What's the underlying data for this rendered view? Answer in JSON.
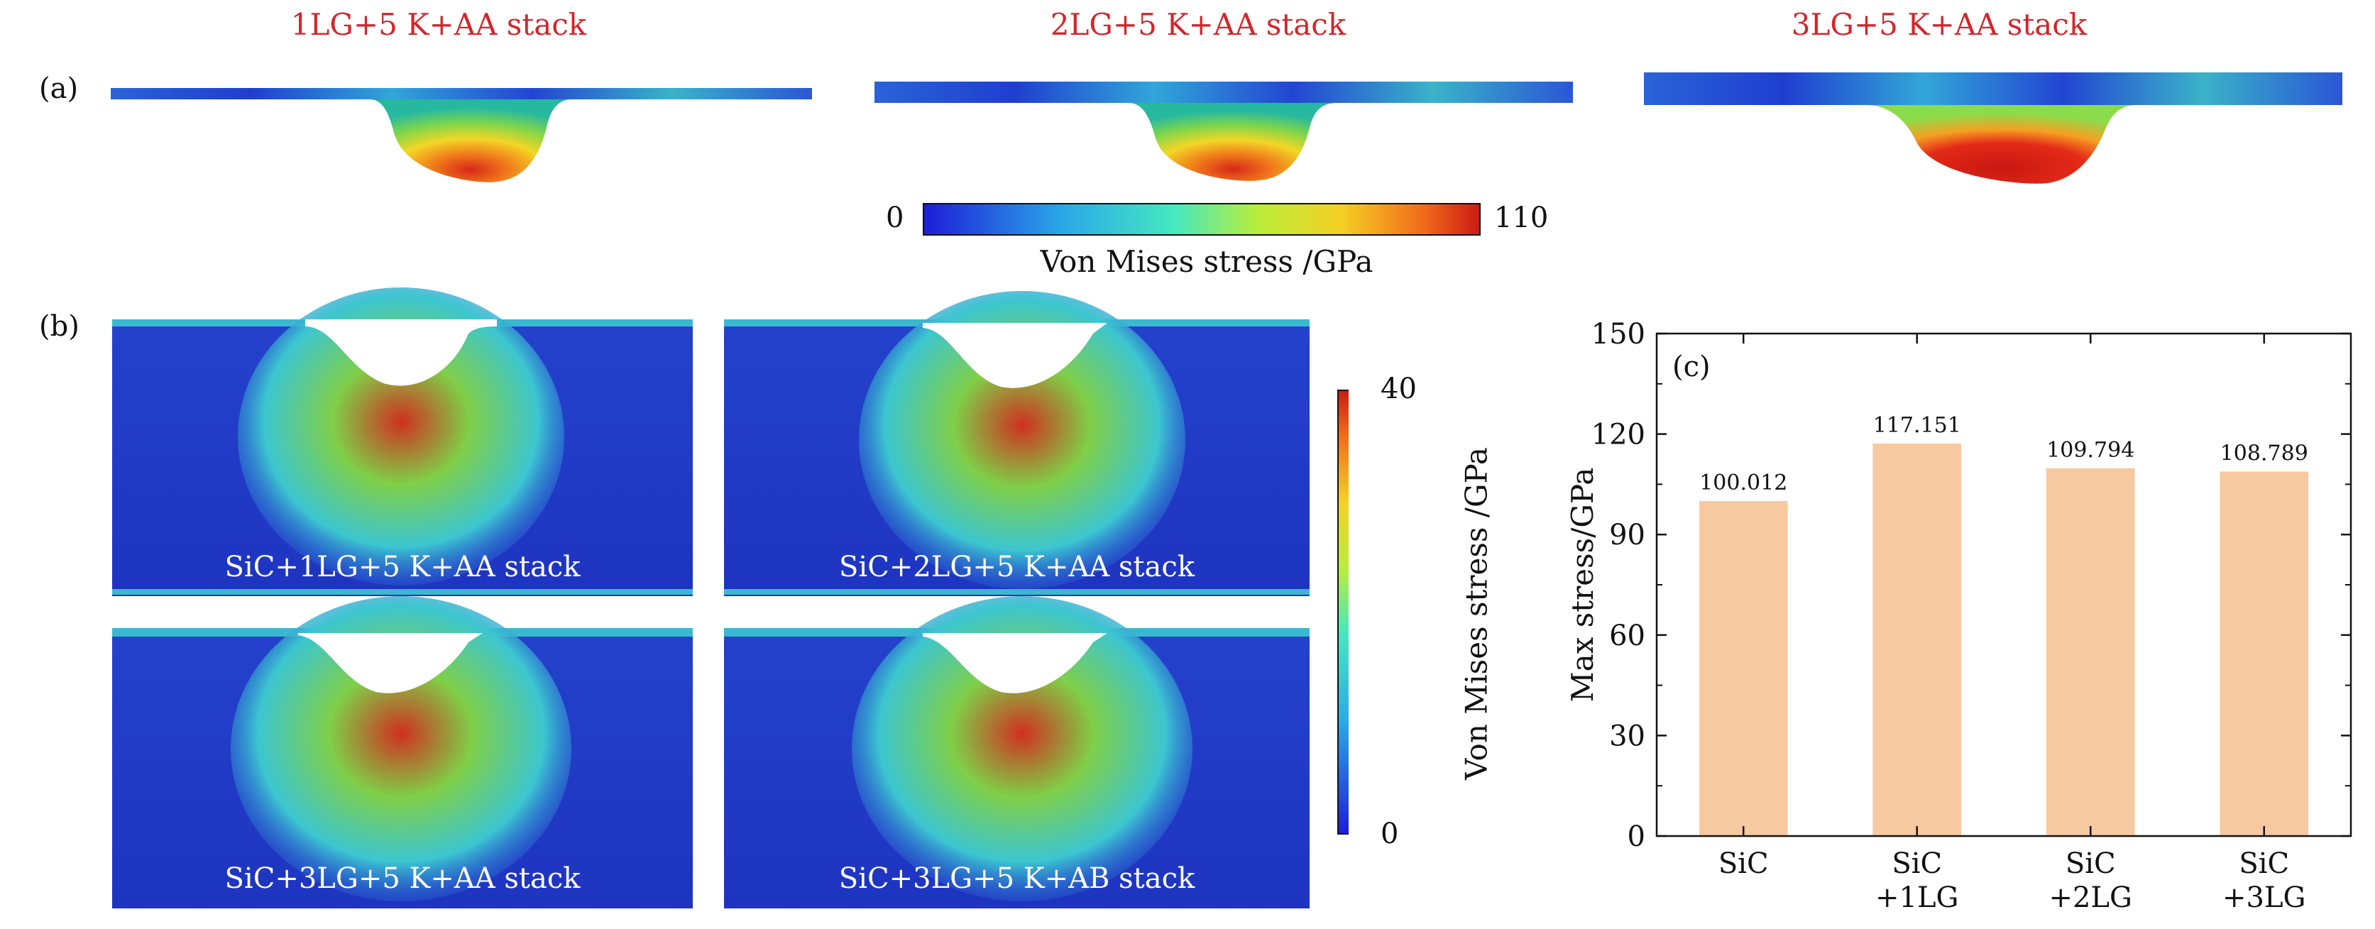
{
  "panel_a": {
    "label": "(a)",
    "titles": [
      "1LG+5 K+AA stack",
      "2LG+5 K+AA stack",
      "3LG+5 K+AA stack"
    ],
    "colorbar": {
      "min": "0",
      "max": "110",
      "label": "Von Mises stress /GPa"
    }
  },
  "panel_b": {
    "label": "(b)",
    "images": [
      "SiC+1LG+5 K+AA stack",
      "SiC+2LG+5 K+AA stack",
      "SiC+3LG+5 K+AA stack",
      "SiC+3LG+5 K+AB stack"
    ],
    "colorbar": {
      "min": "0",
      "max": "40",
      "label": "Von Mises stress /GPa"
    }
  },
  "colors": {
    "title_red": "#d4252a",
    "bar_fill": "#f7c9a0",
    "stress_low": "#1d2bd8",
    "stress_high": "#d62818"
  },
  "chart_data": {
    "type": "bar",
    "panel_label": "(c)",
    "categories": [
      [
        "SiC"
      ],
      [
        "SiC",
        "+1LG"
      ],
      [
        "SiC",
        "+2LG"
      ],
      [
        "SiC",
        "+3LG"
      ]
    ],
    "values": [
      100.012,
      117.151,
      109.794,
      108.789
    ],
    "value_labels": [
      "100.012",
      "117.151",
      "109.794",
      "108.789"
    ],
    "ylabel": "Max stress/GPa",
    "ylim": [
      0,
      150
    ],
    "yticks": [
      0,
      30,
      60,
      90,
      120,
      150
    ],
    "grid": false
  }
}
